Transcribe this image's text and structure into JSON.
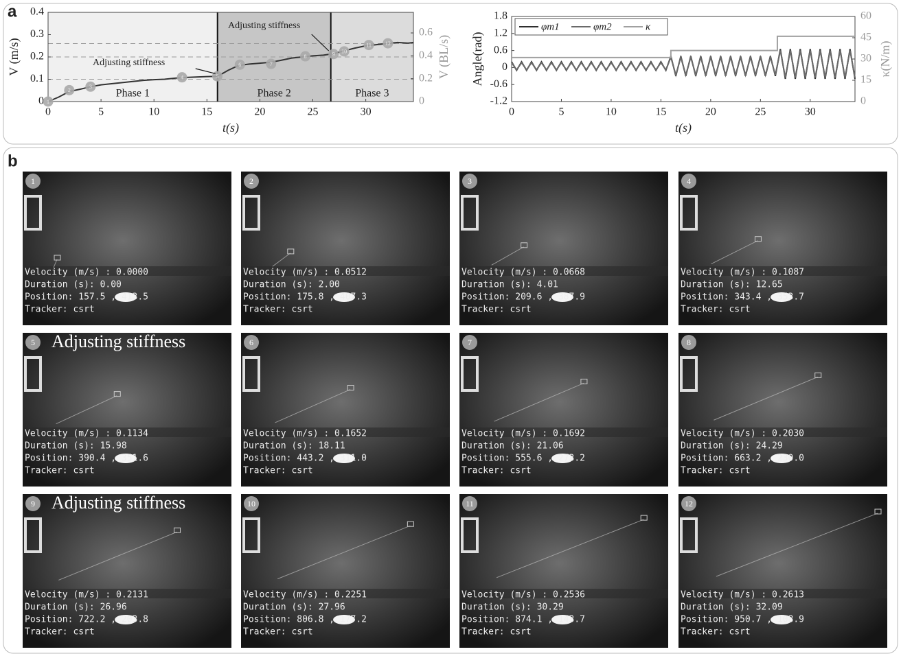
{
  "chart_data": [
    {
      "type": "line",
      "x_label": "t(s)",
      "y_label": "V (m/s)",
      "y2_label": "V (BL/s)",
      "xlim": [
        0,
        34.5
      ],
      "xticks": [
        0,
        5,
        10,
        15,
        20,
        25,
        30
      ],
      "ylim": [
        0,
        0.4
      ],
      "yticks": [
        0,
        0.1,
        0.2,
        0.3,
        0.4
      ],
      "y2lim": [
        0,
        0.78
      ],
      "y2ticks": [
        0,
        0.2,
        0.4,
        0.6
      ],
      "x": [
        0,
        1,
        2,
        3,
        4,
        5,
        6,
        7,
        8,
        9,
        10,
        11,
        12,
        13,
        14,
        15,
        16,
        17,
        18,
        19,
        20,
        21,
        22,
        23,
        24,
        25,
        26,
        27,
        28,
        29,
        30,
        31,
        32,
        33,
        34,
        34.5
      ],
      "series": [
        {
          "color": "#333333",
          "values": [
            0,
            0.02,
            0.045,
            0.055,
            0.066,
            0.075,
            0.08,
            0.085,
            0.09,
            0.095,
            0.098,
            0.1,
            0.105,
            0.108,
            0.11,
            0.112,
            0.113,
            0.14,
            0.162,
            0.168,
            0.172,
            0.176,
            0.185,
            0.195,
            0.2,
            0.205,
            0.208,
            0.215,
            0.228,
            0.24,
            0.25,
            0.255,
            0.26,
            0.265,
            0.262,
            0.265
          ]
        }
      ],
      "markers": {
        "color": "#a8a8a8",
        "labels": [
          "1",
          "2",
          "3",
          "4",
          "5",
          "6",
          "7",
          "8",
          "9",
          "10",
          "11",
          "12"
        ],
        "x": [
          0,
          2,
          4.01,
          12.65,
          15.98,
          18.11,
          21.06,
          24.29,
          26.96,
          27.96,
          30.29,
          32.09
        ],
        "values": [
          0,
          0.0512,
          0.0668,
          0.1087,
          0.1134,
          0.1652,
          0.1692,
          0.203,
          0.2131,
          0.2251,
          0.2536,
          0.2613
        ]
      },
      "phases": [
        {
          "label": "Phase 1",
          "start": 0,
          "end": 16,
          "color": "#f0f0f0"
        },
        {
          "label": "Phase 2",
          "start": 16,
          "end": 26.7,
          "color": "#c6c6c6"
        },
        {
          "label": "Phase 3",
          "start": 26.7,
          "end": 34.5,
          "color": "#dcdcdc"
        }
      ],
      "reference_lines": [
        0.1,
        0.2,
        0.26
      ],
      "annotations": [
        {
          "text": "Adjusting stiffness",
          "x": 16,
          "y": 0.113
        },
        {
          "text": "Adjusting stiffness",
          "x": 26.7,
          "y": 0.215
        }
      ]
    },
    {
      "type": "line",
      "x_label": "t(s)",
      "y_label": "Angle(rad)",
      "y2_label": "κ(N/m)",
      "xlim": [
        0,
        34.5
      ],
      "xticks": [
        0,
        5,
        10,
        15,
        20,
        25,
        30
      ],
      "ylim": [
        -1.2,
        1.8
      ],
      "yticks": [
        -1.2,
        -0.6,
        0,
        0.6,
        1.2,
        1.8
      ],
      "y2lim": [
        0,
        60
      ],
      "y2ticks": [
        0,
        15,
        30,
        45,
        60
      ],
      "x": [
        0,
        0.5,
        1,
        1.5,
        2,
        2.5,
        3,
        3.5,
        4,
        4.5,
        5,
        5.5,
        6,
        6.5,
        7,
        7.5,
        8,
        8.5,
        9,
        9.5,
        10,
        10.5,
        11,
        11.5,
        12,
        12.5,
        13,
        13.5,
        14,
        14.5,
        15,
        15.5,
        16,
        16.5,
        17,
        17.5,
        18,
        18.5,
        19,
        19.5,
        20,
        20.5,
        21,
        21.5,
        22,
        22.5,
        23,
        23.5,
        24,
        24.5,
        25,
        25.5,
        26,
        26.5,
        27,
        27.5,
        28,
        28.5,
        29,
        29.5,
        30,
        30.5,
        31,
        31.5,
        32,
        32.5,
        33,
        33.5,
        34,
        34.5
      ],
      "series": [
        {
          "name": "φm1",
          "color": "#2e2e2e",
          "values": [
            0.2,
            -0.1,
            0.2,
            -0.1,
            0.2,
            -0.1,
            0.2,
            -0.1,
            0.2,
            -0.1,
            0.2,
            -0.1,
            0.2,
            -0.1,
            0.2,
            -0.1,
            0.2,
            -0.1,
            0.2,
            -0.1,
            0.2,
            -0.1,
            0.2,
            -0.1,
            0.2,
            -0.1,
            0.2,
            -0.1,
            0.2,
            -0.1,
            0.2,
            -0.1,
            0.4,
            -0.3,
            0.4,
            -0.3,
            0.4,
            -0.3,
            0.4,
            -0.3,
            0.4,
            -0.3,
            0.4,
            -0.3,
            0.4,
            -0.3,
            0.4,
            -0.3,
            0.4,
            -0.3,
            0.4,
            -0.3,
            0.4,
            -0.3,
            0.65,
            -0.4,
            0.65,
            -0.4,
            0.65,
            -0.4,
            0.65,
            -0.4,
            0.65,
            -0.4,
            0.65,
            -0.4,
            0.65,
            -0.4,
            0.65,
            -0.4
          ]
        },
        {
          "name": "φm2",
          "color": "#6a6a6a",
          "values": [
            0.17,
            -0.08,
            0.17,
            -0.08,
            0.17,
            -0.08,
            0.17,
            -0.08,
            0.17,
            -0.08,
            0.17,
            -0.08,
            0.17,
            -0.08,
            0.17,
            -0.08,
            0.17,
            -0.08,
            0.17,
            -0.08,
            0.17,
            -0.08,
            0.17,
            -0.08,
            0.17,
            -0.08,
            0.17,
            -0.08,
            0.17,
            -0.08,
            0.17,
            -0.08,
            0.36,
            -0.26,
            0.36,
            -0.26,
            0.36,
            -0.26,
            0.36,
            -0.26,
            0.36,
            -0.26,
            0.36,
            -0.26,
            0.36,
            -0.26,
            0.36,
            -0.26,
            0.36,
            -0.26,
            0.36,
            -0.26,
            0.36,
            -0.26,
            0.6,
            -0.35,
            0.6,
            -0.35,
            0.6,
            -0.35,
            0.6,
            -0.35,
            0.6,
            -0.35,
            0.6,
            -0.35,
            0.6,
            -0.35,
            0.6,
            -0.35
          ]
        },
        {
          "name": "κ",
          "color": "#a0a0a0",
          "axis": "y2",
          "x": [
            0,
            16,
            16,
            26.7,
            26.7,
            34.5
          ],
          "values": [
            31,
            31,
            36,
            36,
            46,
            46
          ]
        }
      ]
    }
  ],
  "panels": {
    "a": "a",
    "b": "b"
  },
  "frames": [
    {
      "number": "1",
      "velocity": "Velocity (m/s) : 0.0000",
      "duration": "Duration (s): 0.00",
      "position": "Position: 157.5 , 413.5",
      "tracker": "Tracker: csrt"
    },
    {
      "number": "2",
      "velocity": "Velocity (m/s) : 0.0512",
      "duration": "Duration (s): 2.00",
      "position": "Position: 175.8 , 407.3",
      "tracker": "Tracker: csrt"
    },
    {
      "number": "3",
      "velocity": "Velocity (m/s) : 0.0668",
      "duration": "Duration (s): 4.01",
      "position": "Position: 209.6 , 387.9",
      "tracker": "Tracker: csrt"
    },
    {
      "number": "4",
      "velocity": "Velocity (m/s) : 0.1087",
      "duration": "Duration (s): 12.65",
      "position": "Position: 343.4 , 353.7",
      "tracker": "Tracker: csrt"
    },
    {
      "number": "5",
      "caption": "Adjusting stiffness",
      "velocity": "Velocity (m/s) : 0.1134",
      "duration": "Duration (s): 15.98",
      "position": "Position: 390.4 , 351.6",
      "tracker": "Tracker: csrt"
    },
    {
      "number": "6",
      "velocity": "Velocity (m/s) : 0.1652",
      "duration": "Duration (s): 18.11",
      "position": "Position: 443.2 , 311.0",
      "tracker": "Tracker: csrt"
    },
    {
      "number": "7",
      "velocity": "Velocity (m/s) : 0.1692",
      "duration": "Duration (s): 21.06",
      "position": "Position: 555.6 , 273.2",
      "tracker": "Tracker: csrt"
    },
    {
      "number": "8",
      "velocity": "Velocity (m/s) : 0.2030",
      "duration": "Duration (s): 24.29",
      "position": "Position: 663.2 , 230.0",
      "tracker": "Tracker: csrt"
    },
    {
      "number": "9",
      "caption": "Adjusting stiffness",
      "velocity": "Velocity (m/s) : 0.2131",
      "duration": "Duration (s): 26.96",
      "position": "Position: 722.2 , 203.8",
      "tracker": "Tracker: csrt"
    },
    {
      "number": "10",
      "velocity": "Velocity (m/s) : 0.2251",
      "duration": "Duration (s): 27.96",
      "position": "Position: 806.8 , 177.2",
      "tracker": "Tracker: csrt"
    },
    {
      "number": "11",
      "velocity": "Velocity (m/s) : 0.2536",
      "duration": "Duration (s): 30.29",
      "position": "Position: 874.1 , 143.7",
      "tracker": "Tracker: csrt"
    },
    {
      "number": "12",
      "velocity": "Velocity (m/s) : 0.2613",
      "duration": "Duration (s): 32.09",
      "position": "Position: 950.7 , 108.9",
      "tracker": "Tracker: csrt"
    }
  ]
}
